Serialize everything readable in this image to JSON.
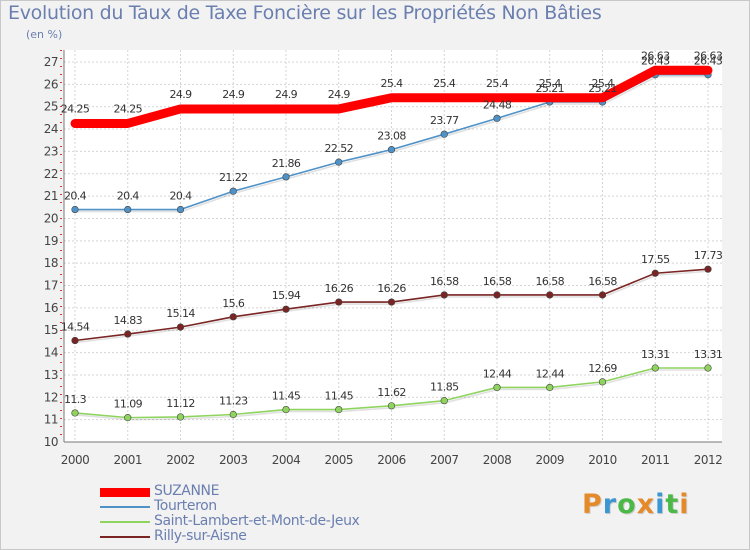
{
  "title": "Evolution du Taux de Taxe Foncière sur les Propriétés Non Bâties",
  "subtitle": "(en %)",
  "logo": {
    "text": "Proxiti",
    "letter_colors": [
      "#e58a2a",
      "#3c96d2",
      "#4cb848",
      "#e58a2a",
      "#3c96d2",
      "#4cb848",
      "#e58a2a"
    ]
  },
  "chart_data": {
    "type": "line",
    "title": "Evolution du Taux de Taxe Foncière sur les Propriétés Non Bâties",
    "ylabel": "(en %)",
    "xlabel": "",
    "x": [
      "2000",
      "2001",
      "2002",
      "2003",
      "2004",
      "2005",
      "2006",
      "2007",
      "2008",
      "2009",
      "2010",
      "2011",
      "2012"
    ],
    "ylim": [
      10,
      27
    ],
    "yticks": [
      10,
      11,
      12,
      13,
      14,
      15,
      16,
      17,
      18,
      19,
      20,
      21,
      22,
      23,
      24,
      25,
      26,
      27
    ],
    "grid": true,
    "legend_position": "bottom-left",
    "series": [
      {
        "name": "SUZANNE",
        "color": "#ff0000",
        "values": [
          24.25,
          24.25,
          24.9,
          24.9,
          24.9,
          24.9,
          25.4,
          25.4,
          25.4,
          25.4,
          25.4,
          26.63,
          26.63
        ],
        "labels": [
          "24.25",
          "24.25",
          "24.9",
          "24.9",
          "24.9",
          "24.9",
          "25.4",
          "25.4",
          "25.4",
          "25.4",
          "25.4",
          "26.63",
          "26.63"
        ]
      },
      {
        "name": "Tourteron",
        "color": "#4f92c8",
        "values": [
          20.4,
          20.4,
          20.4,
          21.22,
          21.86,
          22.52,
          23.08,
          23.77,
          24.48,
          25.21,
          25.21,
          26.43,
          26.43
        ],
        "labels": [
          "20.4",
          "20.4",
          "20.4",
          "21.22",
          "21.86",
          "22.52",
          "23.08",
          "23.77",
          "24.48",
          "25.21",
          "25.21",
          "26.43",
          "26.43"
        ]
      },
      {
        "name": "Saint-Lambert-et-Mont-de-Jeux",
        "color": "#8ed45e",
        "values": [
          11.3,
          11.09,
          11.12,
          11.23,
          11.45,
          11.45,
          11.62,
          11.85,
          12.44,
          12.44,
          12.69,
          13.31,
          13.31
        ],
        "labels": [
          "11.3",
          "11.09",
          "11.12",
          "11.23",
          "11.45",
          "11.45",
          "11.62",
          "11.85",
          "12.44",
          "12.44",
          "12.69",
          "13.31",
          "13.31"
        ]
      },
      {
        "name": "Rilly-sur-Aisne",
        "color": "#7a2424",
        "values": [
          14.54,
          14.83,
          15.14,
          15.6,
          15.94,
          16.26,
          16.26,
          16.58,
          16.58,
          16.58,
          16.58,
          17.55,
          17.73
        ],
        "labels": [
          "14.54",
          "14.83",
          "15.14",
          "15.6",
          "15.94",
          "16.26",
          "16.26",
          "16.58",
          "16.58",
          "16.58",
          "16.58",
          "17.55",
          "17.73"
        ]
      }
    ]
  }
}
